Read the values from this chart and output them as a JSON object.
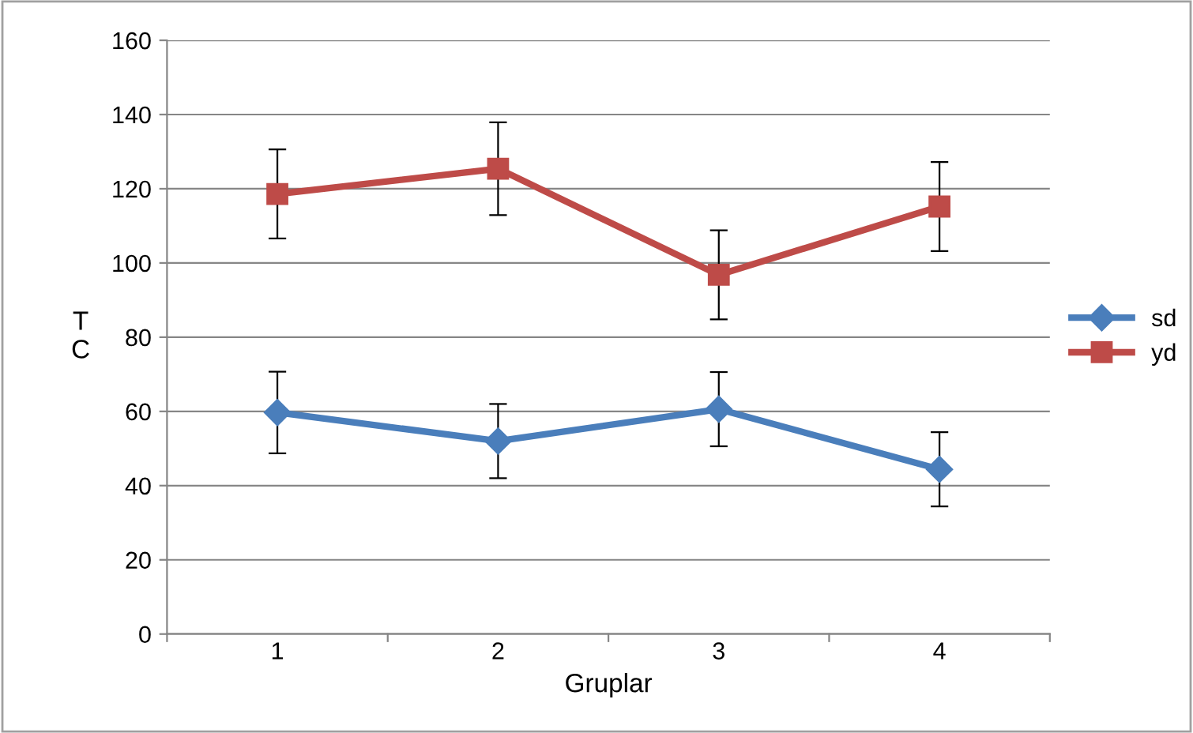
{
  "chart_data": {
    "type": "line",
    "xlabel": "Gruplar",
    "ylabel": "T\nC",
    "categories": [
      "1",
      "2",
      "3",
      "4"
    ],
    "series": [
      {
        "name": "sd",
        "color": "#4a7ebb",
        "marker": "diamond",
        "values": [
          59.7,
          52,
          60.6,
          44.4
        ],
        "errors": [
          11,
          10,
          10,
          10
        ]
      },
      {
        "name": "yd",
        "color": "#be4b48",
        "marker": "square",
        "values": [
          118.6,
          125.4,
          96.8,
          115.2
        ],
        "errors": [
          12,
          12.5,
          12,
          12
        ]
      }
    ],
    "ylim": [
      0,
      160
    ],
    "yticks": [
      0,
      20,
      40,
      60,
      80,
      100,
      120,
      140,
      160
    ],
    "grid": "y",
    "legend": "right"
  }
}
